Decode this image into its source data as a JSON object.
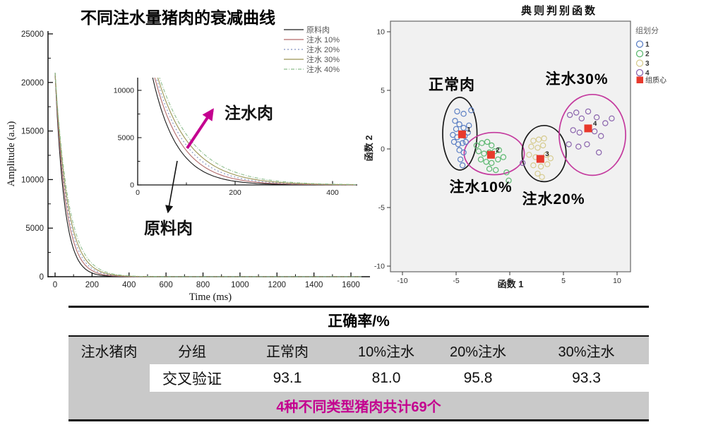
{
  "chart_data": [
    {
      "type": "line",
      "title": "不同注水量猪肉的衰减曲线",
      "xlabel": "Time (ms)",
      "ylabel": "Amplitude (a.u)",
      "xlim": [
        0,
        1700
      ],
      "ylim": [
        0,
        25000
      ],
      "x_ticks": [
        0,
        200,
        400,
        600,
        800,
        1000,
        1200,
        1400,
        1600
      ],
      "y_ticks": [
        0,
        5000,
        10000,
        15000,
        20000,
        25000
      ],
      "series": [
        {
          "name": "原料肉",
          "color": "#1a1a1a",
          "dash": "",
          "amplitude": 21000,
          "tau_ms": 50
        },
        {
          "name": "注水 10%",
          "color": "#b36b6b",
          "dash": "",
          "amplitude": 21000,
          "tau_ms": 57
        },
        {
          "name": "注水 20%",
          "color": "#8090c0",
          "dash": "2 3",
          "amplitude": 21000,
          "tau_ms": 62
        },
        {
          "name": "注水 30%",
          "color": "#9a9455",
          "dash": "",
          "amplitude": 21000,
          "tau_ms": 67
        },
        {
          "name": "注水 40%",
          "color": "#8fbf8f",
          "dash": "5 2 1 2",
          "amplitude": 21000,
          "tau_ms": 73
        }
      ],
      "inset": {
        "xlim": [
          0,
          430
        ],
        "ylim": [
          0,
          11000
        ],
        "x_ticks": [
          0,
          200,
          400
        ],
        "y_ticks": [
          0,
          5000,
          10000
        ]
      },
      "annotations": [
        {
          "text": "注水肉",
          "color": "#c4008f"
        },
        {
          "text": "原料肉",
          "color": "#111111"
        }
      ]
    },
    {
      "type": "scatter",
      "title": "典则判别函数",
      "xlabel": "函数 1",
      "ylabel": "函数 2",
      "xlim": [
        -10,
        10
      ],
      "ylim": [
        -10,
        10
      ],
      "x_ticks": [
        -10,
        -5,
        0,
        5,
        10
      ],
      "y_ticks": [
        10,
        5,
        0,
        -5,
        -10
      ],
      "plot_bg": "#f1f1f1",
      "legend_title": "组划分",
      "centroid_label": "组质心",
      "centroid_color": "#e8392c",
      "groups": [
        {
          "name": "1",
          "color": "#5b7fc4",
          "centroid": [
            -4.45,
            1.25
          ],
          "points": [
            [
              -4.9,
              3.2
            ],
            [
              -4.3,
              3.0
            ],
            [
              -3.6,
              3.3
            ],
            [
              -5.1,
              2.4
            ],
            [
              -4.7,
              2.1
            ],
            [
              -5.0,
              1.7
            ],
            [
              -4.3,
              1.8
            ],
            [
              -3.8,
              2.0
            ],
            [
              -5.3,
              1.2
            ],
            [
              -4.9,
              1.0
            ],
            [
              -4.2,
              1.1
            ],
            [
              -3.9,
              1.4
            ],
            [
              -5.2,
              0.6
            ],
            [
              -4.8,
              0.4
            ],
            [
              -4.4,
              0.5
            ],
            [
              -4.1,
              0.6
            ],
            [
              -4.7,
              -0.1
            ],
            [
              -4.3,
              -0.3
            ],
            [
              -4.6,
              -0.9
            ],
            [
              -4.4,
              -1.4
            ]
          ]
        },
        {
          "name": "2",
          "color": "#5cb870",
          "centroid": [
            -1.75,
            -0.5
          ],
          "points": [
            [
              -3.1,
              0.3
            ],
            [
              -2.6,
              0.5
            ],
            [
              -2.1,
              0.6
            ],
            [
              -1.7,
              0.3
            ],
            [
              -2.9,
              -0.2
            ],
            [
              -2.4,
              -0.4
            ],
            [
              -1.9,
              -0.3
            ],
            [
              -1.4,
              -0.2
            ],
            [
              -1.0,
              -0.1
            ],
            [
              -2.7,
              -0.9
            ],
            [
              -2.2,
              -1.1
            ],
            [
              -1.7,
              -1.2
            ],
            [
              -1.1,
              -0.9
            ],
            [
              -0.6,
              -0.7
            ],
            [
              -1.9,
              -1.7
            ],
            [
              -1.3,
              -1.8
            ],
            [
              -0.3,
              -2.0
            ],
            [
              -0.1,
              -2.7
            ]
          ]
        },
        {
          "name": "3",
          "color": "#d6cb8e",
          "centroid": [
            2.85,
            -0.85
          ],
          "points": [
            [
              2.2,
              0.7
            ],
            [
              2.7,
              0.8
            ],
            [
              3.2,
              0.9
            ],
            [
              2.0,
              0.2
            ],
            [
              2.6,
              0.1
            ],
            [
              3.1,
              0.3
            ],
            [
              1.8,
              -0.5
            ],
            [
              2.4,
              -0.7
            ],
            [
              3.4,
              -0.5
            ],
            [
              3.8,
              -0.8
            ],
            [
              2.2,
              -1.4
            ],
            [
              2.9,
              -1.5
            ],
            [
              3.5,
              -1.3
            ],
            [
              2.6,
              -2.1
            ],
            [
              3.0,
              -2.4
            ]
          ]
        },
        {
          "name": "4",
          "color": "#8a63ad",
          "centroid": [
            7.3,
            1.75
          ],
          "points": [
            [
              5.6,
              2.9
            ],
            [
              6.2,
              3.1
            ],
            [
              6.7,
              2.6
            ],
            [
              7.3,
              3.2
            ],
            [
              8.1,
              2.7
            ],
            [
              8.9,
              2.2
            ],
            [
              9.5,
              2.6
            ],
            [
              5.9,
              1.6
            ],
            [
              6.5,
              1.4
            ],
            [
              7.9,
              1.5
            ],
            [
              8.5,
              1.1
            ],
            [
              5.5,
              0.4
            ],
            [
              6.4,
              0.2
            ],
            [
              7.2,
              0.4
            ],
            [
              8.3,
              -0.3
            ],
            [
              1.2,
              -1.2
            ]
          ]
        }
      ],
      "ellipses": [
        {
          "color": "#1a1a1a",
          "cx": -4.65,
          "cy": 1.3,
          "rx": 1.6,
          "ry": 3.1
        },
        {
          "color": "#c43a9e",
          "cx": -1.45,
          "cy": -0.4,
          "rx": 2.8,
          "ry": 1.8
        },
        {
          "color": "#1a1a1a",
          "cx": 3.2,
          "cy": -0.4,
          "rx": 2.05,
          "ry": 2.4
        },
        {
          "color": "#c43a9e",
          "cx": 7.7,
          "cy": 1.2,
          "rx": 3.1,
          "ry": 3.45
        }
      ],
      "annotations": [
        {
          "text": "正常肉"
        },
        {
          "text": "注水10%"
        },
        {
          "text": "注水20%"
        },
        {
          "text": "注水30%"
        }
      ]
    }
  ],
  "table": {
    "title": "正确率/%",
    "header": [
      "注水猪肉",
      "分组",
      "正常肉",
      "10%注水",
      "20%注水",
      "30%注水"
    ],
    "row": [
      "",
      "交叉验证",
      "93.1",
      "81.0",
      "95.8",
      "93.3"
    ],
    "footer": "4种不同类型猪肉共计69个",
    "footer_color": "#c4008f",
    "header_bg": "#c9c9c9"
  }
}
